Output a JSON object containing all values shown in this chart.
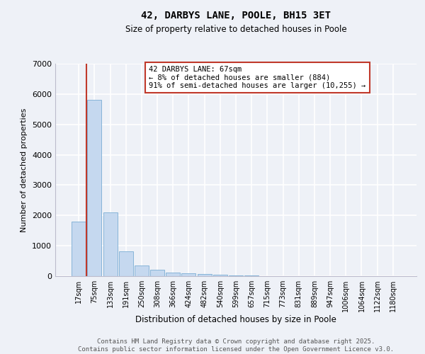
{
  "title1": "42, DARBYS LANE, POOLE, BH15 3ET",
  "title2": "Size of property relative to detached houses in Poole",
  "xlabel": "Distribution of detached houses by size in Poole",
  "ylabel": "Number of detached properties",
  "categories": [
    "17sqm",
    "75sqm",
    "133sqm",
    "191sqm",
    "250sqm",
    "308sqm",
    "366sqm",
    "424sqm",
    "482sqm",
    "540sqm",
    "599sqm",
    "657sqm",
    "715sqm",
    "773sqm",
    "831sqm",
    "889sqm",
    "947sqm",
    "1006sqm",
    "1064sqm",
    "1122sqm",
    "1180sqm"
  ],
  "values": [
    1800,
    5800,
    2100,
    820,
    350,
    220,
    120,
    85,
    60,
    45,
    25,
    20,
    10,
    5,
    3,
    2,
    1,
    1,
    0,
    0,
    0
  ],
  "bar_color": "#c5d8ef",
  "bar_edge_color": "#7aadd4",
  "vline_x": 0.5,
  "vline_color": "#c0392b",
  "annotation_text": "42 DARBYS LANE: 67sqm\n← 8% of detached houses are smaller (884)\n91% of semi-detached houses are larger (10,255) →",
  "annotation_box_color": "#c0392b",
  "background_color": "#eef1f7",
  "grid_color": "#ffffff",
  "ylim": [
    0,
    7000
  ],
  "yticks": [
    0,
    1000,
    2000,
    3000,
    4000,
    5000,
    6000,
    7000
  ],
  "footer1": "Contains HM Land Registry data © Crown copyright and database right 2025.",
  "footer2": "Contains public sector information licensed under the Open Government Licence v3.0."
}
